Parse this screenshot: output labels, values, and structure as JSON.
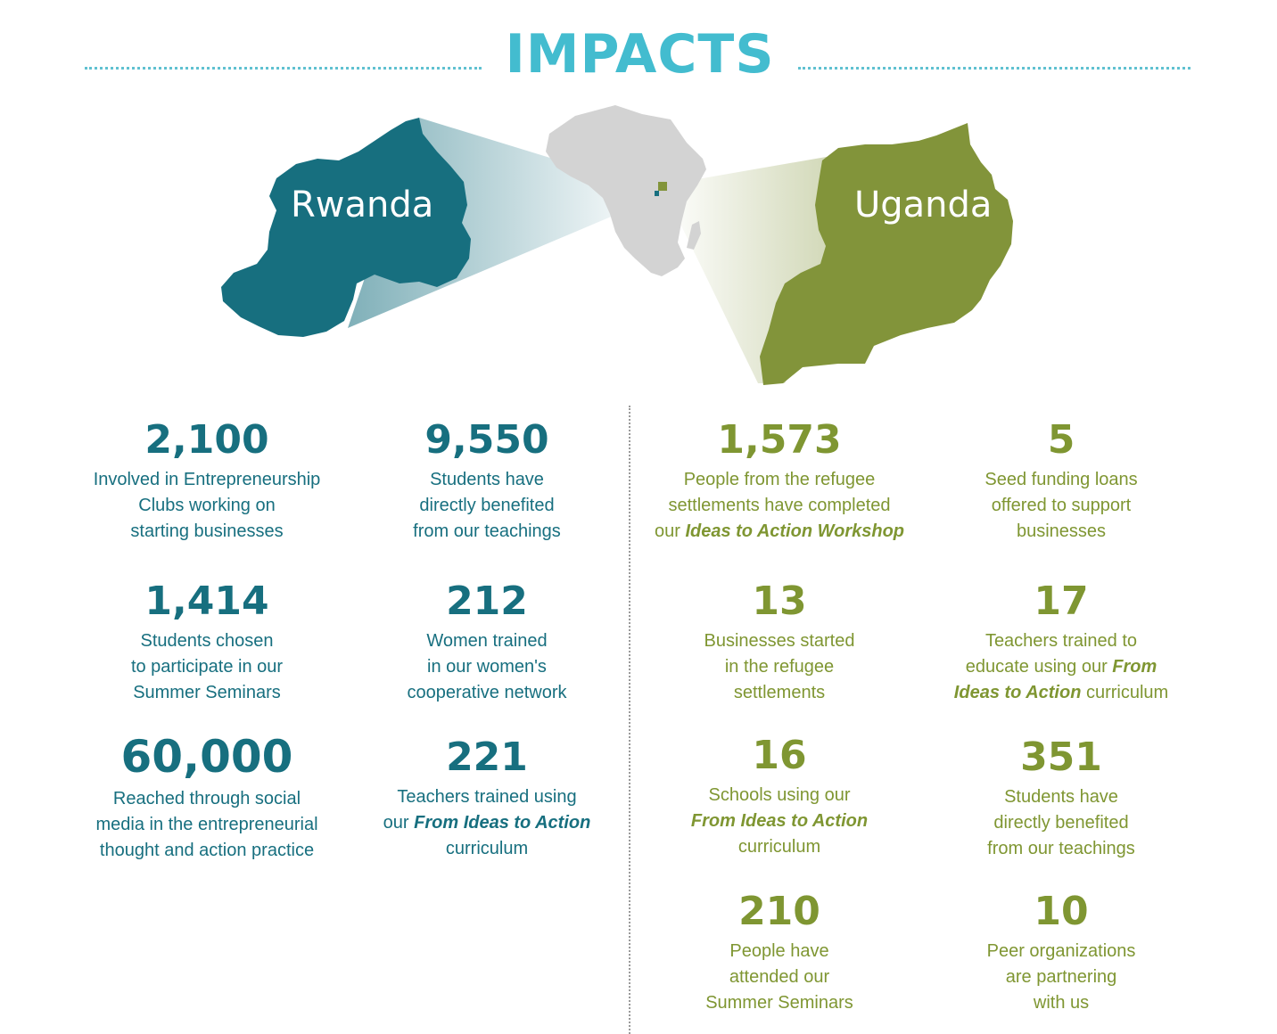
{
  "title": "IMPACTS",
  "colors": {
    "title": "#43bccf",
    "rwanda": "#176f7f",
    "uganda": "#82943a",
    "africa": "#d3d3d3",
    "divider": "#9a9a9a"
  },
  "maps": {
    "left_country": "Rwanda",
    "right_country": "Uganda"
  },
  "rwanda": {
    "stats": [
      {
        "number": "2,100",
        "lines": [
          "Involved in Entrepreneurship",
          "Clubs working on",
          "starting businesses"
        ]
      },
      {
        "number": "9,550",
        "lines": [
          "Students have",
          "directly benefited",
          "from our teachings"
        ]
      },
      {
        "number": "1,414",
        "lines": [
          "Students chosen",
          "to participate in our",
          "Summer Seminars"
        ]
      },
      {
        "number": "212",
        "lines": [
          "Women trained",
          "in our women's",
          "cooperative network"
        ]
      },
      {
        "number": "60,000",
        "lines": [
          "Reached through social",
          "media in the entrepreneurial",
          "thought and action practice"
        ]
      },
      {
        "number": "221",
        "lines": [
          "Teachers trained using"
        ],
        "line2_pre": "our ",
        "line2_em": "From Ideas to Action",
        "line3": "curriculum"
      }
    ]
  },
  "uganda": {
    "stats": [
      {
        "number": "1,573",
        "lines": [
          "People from the refugee",
          "settlements have completed"
        ],
        "line3_pre": "our ",
        "line3_em": "Ideas to Action Workshop"
      },
      {
        "number": "5",
        "lines": [
          "Seed funding loans",
          "offered to support",
          "businesses"
        ]
      },
      {
        "number": "13",
        "lines": [
          "Businesses started",
          "in the refugee",
          "settlements"
        ]
      },
      {
        "number": "17",
        "lines": [
          "Teachers trained to"
        ],
        "line2_pre": "educate using our ",
        "line2_em": "From",
        "line3_em": "Ideas to Action",
        "line3_post": " curriculum"
      },
      {
        "number": "16",
        "lines": [
          "Schools using our"
        ],
        "line2_em": "From Ideas to Action",
        "line3": "curriculum"
      },
      {
        "number": "351",
        "lines": [
          "Students have",
          "directly benefited",
          "from our teachings"
        ]
      },
      {
        "number": "210",
        "lines": [
          "People have",
          "attended our",
          "Summer Seminars"
        ]
      },
      {
        "number": "10",
        "lines": [
          "Peer organizations",
          "are partnering",
          "with us"
        ]
      }
    ]
  }
}
